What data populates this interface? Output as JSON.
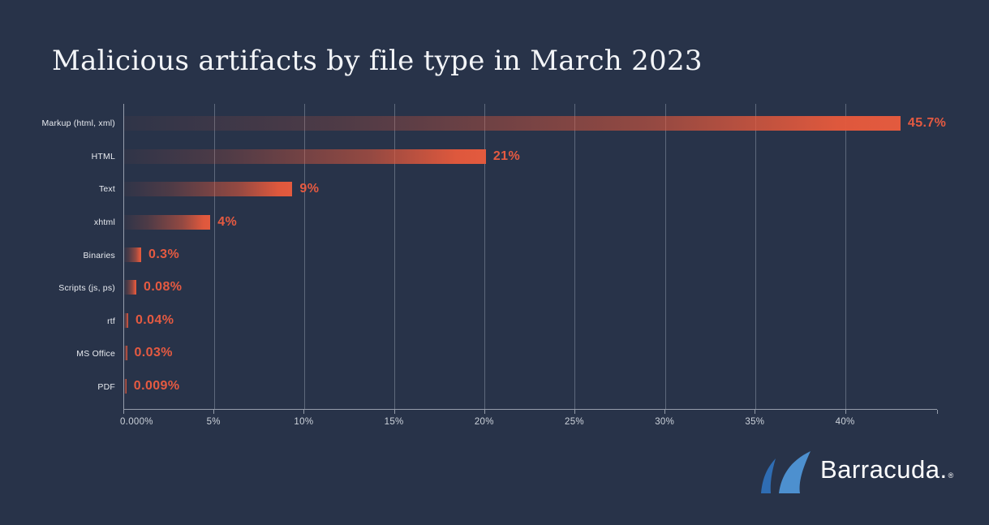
{
  "title": "Malicious artifacts by file type in March 2023",
  "logo": {
    "text": "Barracuda.",
    "registered": "®"
  },
  "colors": {
    "background": "#283349",
    "bar_orange": "#e35a3e",
    "value_label": "#e55a41",
    "category_label": "#e8ebf0",
    "tick_label": "#ccd2da",
    "grid_line": "rgba(160,170,186,0.45)",
    "axis_line": "rgba(195,202,214,0.7)",
    "title": "#f3f5f8",
    "logo_fin_dark": "#2f6db3",
    "logo_fin_light": "#4d90cf",
    "logo_text": "#ffffff"
  },
  "chart_data": {
    "type": "bar",
    "orientation": "horizontal",
    "title": "Malicious artifacts by file type in March 2023",
    "categories": [
      "Markup (html, xml)",
      "HTML",
      "Text",
      "xhtml",
      "Binaries",
      "Scripts (js, ps)",
      "rtf",
      "MS Office",
      "PDF"
    ],
    "values": [
      45.7,
      21,
      9,
      4,
      0.3,
      0.08,
      0.04,
      0.03,
      0.009
    ],
    "value_labels": [
      "45.7%",
      "21%",
      "9%",
      "4%",
      "0.3%",
      "0.08%",
      "0.04%",
      "0.03%",
      "0.009%"
    ],
    "bar_width_pct": [
      95.5,
      44.5,
      20.7,
      10.6,
      2.1,
      1.5,
      0.5,
      0.35,
      0.28
    ],
    "x_ticks": [
      "0.000%",
      "5%",
      "10%",
      "15%",
      "20%",
      "25%",
      "30%",
      "35%",
      "40%"
    ],
    "x_tick_values": [
      0,
      5,
      10,
      15,
      20,
      25,
      30,
      35,
      40
    ],
    "xlim": [
      0,
      45.1
    ],
    "grid": "vertical",
    "legend": "none",
    "bar_style": "gradient dark-to-orange, left to right"
  }
}
